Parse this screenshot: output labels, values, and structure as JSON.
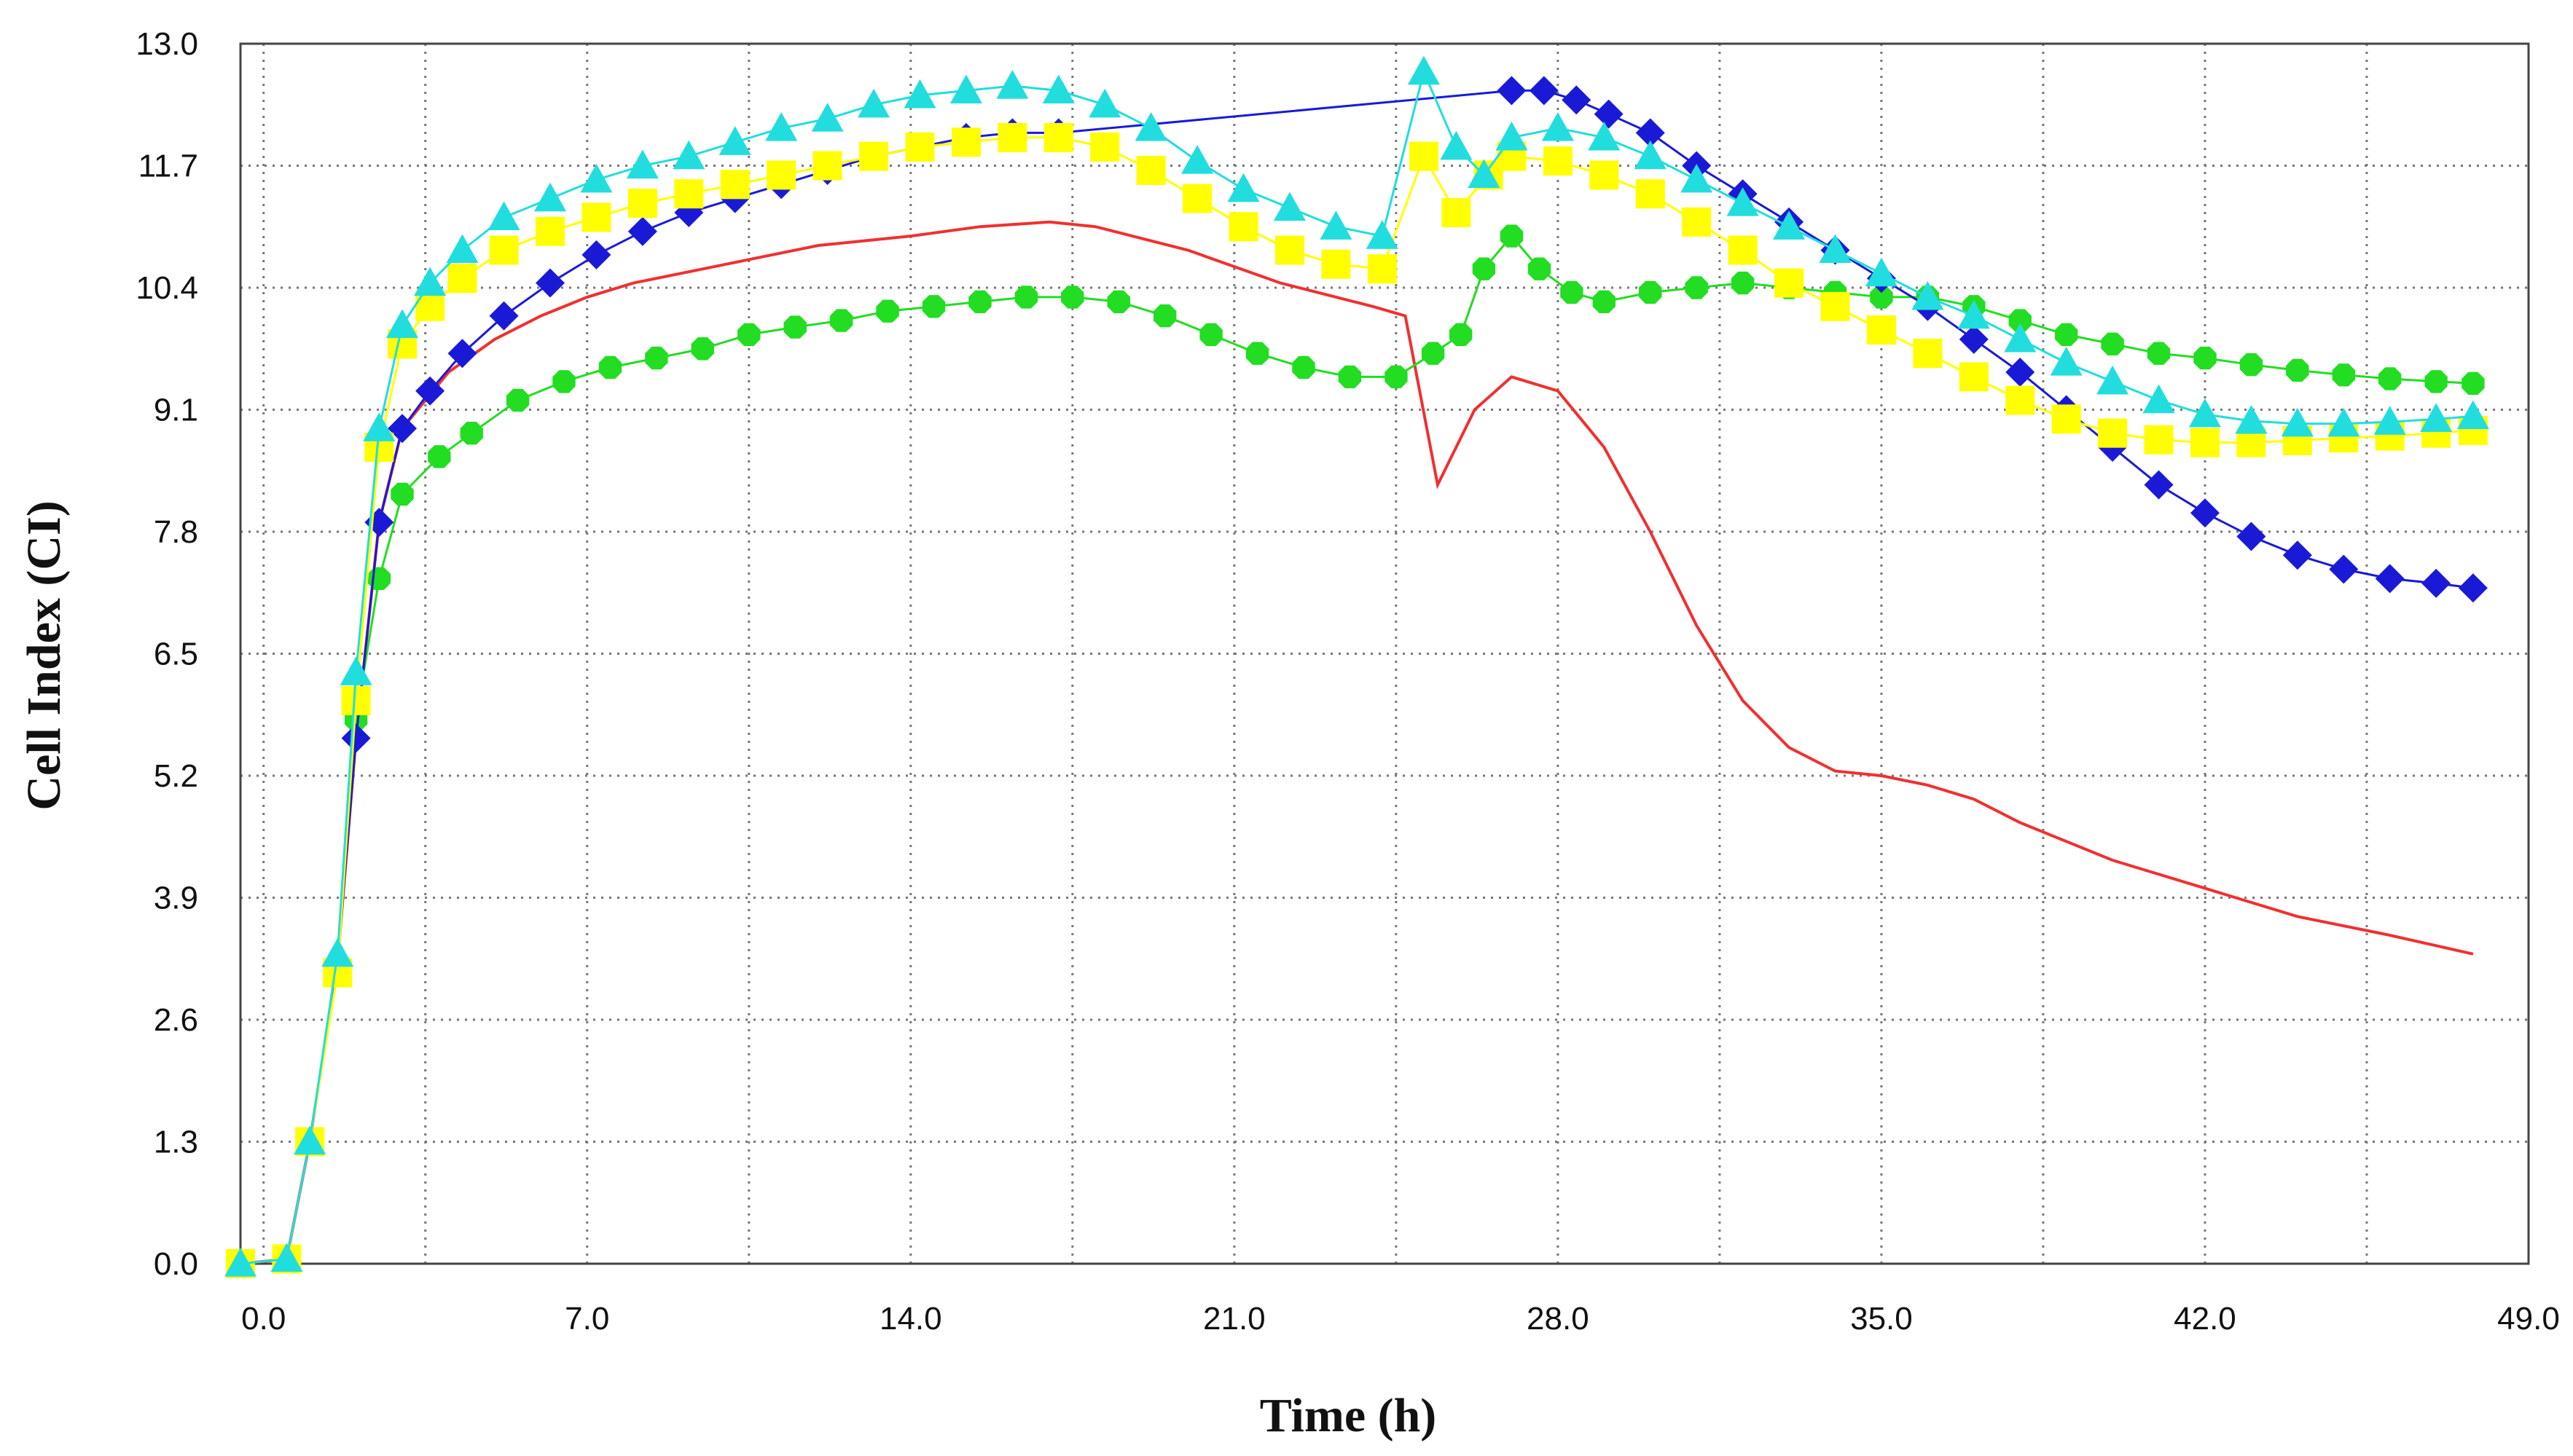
{
  "chart_data": {
    "type": "line",
    "title": "",
    "xlabel": "Time (h)",
    "ylabel": "Cell Index (CI)",
    "xlim": [
      -0.5,
      49.0
    ],
    "ylim": [
      0.0,
      13.0
    ],
    "grid": true,
    "legend": "none",
    "x_tick_labels": [
      "0.0",
      "7.0",
      "14.0",
      "21.0",
      "28.0",
      "35.0",
      "42.0",
      "49.0"
    ],
    "y_tick_labels": [
      "0.0",
      "1.3",
      "2.6",
      "3.9",
      "5.2",
      "6.5",
      "7.8",
      "9.1",
      "10.4",
      "11.7",
      "13.0"
    ],
    "colors": {
      "red": "#f03030",
      "green": "#22dd22",
      "blue": "#1a1ad6",
      "yellow": "#ffff00",
      "cyan": "#22dddd"
    },
    "series": [
      {
        "name": "red",
        "marker": "none",
        "color": "#f03030",
        "points": [
          [
            -0.5,
            0.0
          ],
          [
            0.5,
            0.05
          ],
          [
            1.0,
            1.3
          ],
          [
            1.6,
            3.2
          ],
          [
            2.0,
            5.6
          ],
          [
            2.5,
            7.9
          ],
          [
            3.0,
            8.9
          ],
          [
            4.0,
            9.5
          ],
          [
            5.0,
            9.85
          ],
          [
            6.0,
            10.1
          ],
          [
            7.0,
            10.3
          ],
          [
            8.0,
            10.45
          ],
          [
            10.0,
            10.65
          ],
          [
            12.0,
            10.85
          ],
          [
            14.0,
            10.95
          ],
          [
            15.5,
            11.05
          ],
          [
            17.0,
            11.1
          ],
          [
            18.0,
            11.05
          ],
          [
            20.0,
            10.8
          ],
          [
            22.0,
            10.45
          ],
          [
            24.0,
            10.2
          ],
          [
            24.7,
            10.1
          ],
          [
            25.4,
            8.3
          ],
          [
            26.2,
            9.1
          ],
          [
            27.0,
            9.45
          ],
          [
            28.0,
            9.3
          ],
          [
            29.0,
            8.7
          ],
          [
            30.0,
            7.8
          ],
          [
            31.0,
            6.8
          ],
          [
            32.0,
            6.0
          ],
          [
            33.0,
            5.5
          ],
          [
            34.0,
            5.25
          ],
          [
            35.0,
            5.2
          ],
          [
            36.0,
            5.1
          ],
          [
            37.0,
            4.95
          ],
          [
            38.0,
            4.7
          ],
          [
            40.0,
            4.3
          ],
          [
            42.0,
            4.0
          ],
          [
            44.0,
            3.7
          ],
          [
            46.0,
            3.5
          ],
          [
            47.8,
            3.3
          ]
        ]
      },
      {
        "name": "green",
        "marker": "hexagon",
        "color": "#22dd22",
        "points": [
          [
            -0.5,
            0.0
          ],
          [
            0.5,
            0.05
          ],
          [
            1.0,
            1.3
          ],
          [
            1.6,
            3.2
          ],
          [
            2.0,
            5.8
          ],
          [
            2.5,
            7.3
          ],
          [
            3.0,
            8.2
          ],
          [
            3.8,
            8.6
          ],
          [
            4.5,
            8.85
          ],
          [
            5.5,
            9.2
          ],
          [
            6.5,
            9.4
          ],
          [
            7.5,
            9.55
          ],
          [
            8.5,
            9.65
          ],
          [
            9.5,
            9.75
          ],
          [
            10.5,
            9.9
          ],
          [
            11.5,
            9.98
          ],
          [
            12.5,
            10.05
          ],
          [
            13.5,
            10.15
          ],
          [
            14.5,
            10.2
          ],
          [
            15.5,
            10.25
          ],
          [
            16.5,
            10.3
          ],
          [
            17.5,
            10.3
          ],
          [
            18.5,
            10.25
          ],
          [
            19.5,
            10.1
          ],
          [
            20.5,
            9.9
          ],
          [
            21.5,
            9.7
          ],
          [
            22.5,
            9.55
          ],
          [
            23.5,
            9.45
          ],
          [
            24.5,
            9.45
          ],
          [
            25.3,
            9.7
          ],
          [
            25.9,
            9.9
          ],
          [
            26.4,
            10.6
          ],
          [
            27.0,
            10.95
          ],
          [
            27.6,
            10.6
          ],
          [
            28.3,
            10.35
          ],
          [
            29.0,
            10.25
          ],
          [
            30.0,
            10.35
          ],
          [
            31.0,
            10.4
          ],
          [
            32.0,
            10.45
          ],
          [
            33.0,
            10.4
          ],
          [
            34.0,
            10.35
          ],
          [
            35.0,
            10.3
          ],
          [
            36.0,
            10.3
          ],
          [
            37.0,
            10.2
          ],
          [
            38.0,
            10.05
          ],
          [
            39.0,
            9.9
          ],
          [
            40.0,
            9.8
          ],
          [
            41.0,
            9.7
          ],
          [
            42.0,
            9.65
          ],
          [
            43.0,
            9.58
          ],
          [
            44.0,
            9.52
          ],
          [
            45.0,
            9.47
          ],
          [
            46.0,
            9.43
          ],
          [
            47.0,
            9.4
          ],
          [
            47.8,
            9.38
          ]
        ]
      },
      {
        "name": "blue",
        "marker": "diamond",
        "color": "#1a1ad6",
        "points": [
          [
            -0.5,
            0.0
          ],
          [
            0.5,
            0.05
          ],
          [
            1.0,
            1.3
          ],
          [
            1.6,
            3.2
          ],
          [
            2.0,
            5.6
          ],
          [
            2.5,
            7.9
          ],
          [
            3.0,
            8.9
          ],
          [
            3.6,
            9.3
          ],
          [
            4.3,
            9.7
          ],
          [
            5.2,
            10.1
          ],
          [
            6.2,
            10.45
          ],
          [
            7.2,
            10.75
          ],
          [
            8.2,
            11.0
          ],
          [
            9.2,
            11.2
          ],
          [
            10.2,
            11.35
          ],
          [
            11.2,
            11.5
          ],
          [
            12.2,
            11.65
          ],
          [
            13.2,
            11.8
          ],
          [
            14.2,
            11.9
          ],
          [
            15.2,
            12.0
          ],
          [
            16.2,
            12.05
          ],
          [
            17.2,
            12.05
          ],
          [
            27.0,
            12.5
          ],
          [
            27.7,
            12.5
          ],
          [
            28.4,
            12.4
          ],
          [
            29.1,
            12.25
          ],
          [
            30.0,
            12.05
          ],
          [
            31.0,
            11.7
          ],
          [
            32.0,
            11.4
          ],
          [
            33.0,
            11.1
          ],
          [
            34.0,
            10.8
          ],
          [
            35.0,
            10.5
          ],
          [
            36.0,
            10.2
          ],
          [
            37.0,
            9.85
          ],
          [
            38.0,
            9.5
          ],
          [
            39.0,
            9.1
          ],
          [
            40.0,
            8.7
          ],
          [
            41.0,
            8.3
          ],
          [
            42.0,
            8.0
          ],
          [
            43.0,
            7.75
          ],
          [
            44.0,
            7.55
          ],
          [
            45.0,
            7.4
          ],
          [
            46.0,
            7.3
          ],
          [
            47.0,
            7.25
          ],
          [
            47.8,
            7.2
          ]
        ]
      },
      {
        "name": "yellow",
        "marker": "square",
        "color": "#ffff00",
        "points": [
          [
            -0.5,
            0.0
          ],
          [
            0.5,
            0.05
          ],
          [
            1.0,
            1.3
          ],
          [
            1.6,
            3.1
          ],
          [
            2.0,
            6.0
          ],
          [
            2.5,
            8.7
          ],
          [
            3.0,
            9.8
          ],
          [
            3.6,
            10.2
          ],
          [
            4.3,
            10.5
          ],
          [
            5.2,
            10.8
          ],
          [
            6.2,
            11.0
          ],
          [
            7.2,
            11.15
          ],
          [
            8.2,
            11.3
          ],
          [
            9.2,
            11.4
          ],
          [
            10.2,
            11.5
          ],
          [
            11.2,
            11.6
          ],
          [
            12.2,
            11.7
          ],
          [
            13.2,
            11.8
          ],
          [
            14.2,
            11.9
          ],
          [
            15.2,
            11.95
          ],
          [
            16.2,
            12.0
          ],
          [
            17.2,
            12.0
          ],
          [
            18.2,
            11.9
          ],
          [
            19.2,
            11.65
          ],
          [
            20.2,
            11.35
          ],
          [
            21.2,
            11.05
          ],
          [
            22.2,
            10.8
          ],
          [
            23.2,
            10.65
          ],
          [
            24.2,
            10.6
          ],
          [
            25.1,
            11.8
          ],
          [
            25.8,
            11.2
          ],
          [
            26.5,
            11.6
          ],
          [
            27.0,
            11.8
          ],
          [
            28.0,
            11.75
          ],
          [
            29.0,
            11.6
          ],
          [
            30.0,
            11.4
          ],
          [
            31.0,
            11.1
          ],
          [
            32.0,
            10.8
          ],
          [
            33.0,
            10.45
          ],
          [
            34.0,
            10.2
          ],
          [
            35.0,
            9.95
          ],
          [
            36.0,
            9.7
          ],
          [
            37.0,
            9.45
          ],
          [
            38.0,
            9.2
          ],
          [
            39.0,
            9.0
          ],
          [
            40.0,
            8.85
          ],
          [
            41.0,
            8.78
          ],
          [
            42.0,
            8.75
          ],
          [
            43.0,
            8.75
          ],
          [
            44.0,
            8.77
          ],
          [
            45.0,
            8.8
          ],
          [
            46.0,
            8.82
          ],
          [
            47.0,
            8.85
          ],
          [
            47.8,
            8.88
          ]
        ]
      },
      {
        "name": "cyan",
        "marker": "triangle",
        "color": "#22dddd",
        "points": [
          [
            -0.5,
            0.0
          ],
          [
            0.5,
            0.05
          ],
          [
            1.0,
            1.3
          ],
          [
            1.6,
            3.3
          ],
          [
            2.0,
            6.3
          ],
          [
            2.5,
            8.9
          ],
          [
            3.0,
            10.0
          ],
          [
            3.6,
            10.45
          ],
          [
            4.3,
            10.8
          ],
          [
            5.2,
            11.15
          ],
          [
            6.2,
            11.35
          ],
          [
            7.2,
            11.55
          ],
          [
            8.2,
            11.7
          ],
          [
            9.2,
            11.8
          ],
          [
            10.2,
            11.95
          ],
          [
            11.2,
            12.1
          ],
          [
            12.2,
            12.2
          ],
          [
            13.2,
            12.35
          ],
          [
            14.2,
            12.45
          ],
          [
            15.2,
            12.5
          ],
          [
            16.2,
            12.55
          ],
          [
            17.2,
            12.5
          ],
          [
            18.2,
            12.35
          ],
          [
            19.2,
            12.1
          ],
          [
            20.2,
            11.75
          ],
          [
            21.2,
            11.45
          ],
          [
            22.2,
            11.25
          ],
          [
            23.2,
            11.05
          ],
          [
            24.2,
            10.95
          ],
          [
            25.1,
            12.7
          ],
          [
            25.8,
            11.9
          ],
          [
            26.4,
            11.6
          ],
          [
            27.0,
            12.0
          ],
          [
            28.0,
            12.1
          ],
          [
            29.0,
            12.0
          ],
          [
            30.0,
            11.8
          ],
          [
            31.0,
            11.55
          ],
          [
            32.0,
            11.3
          ],
          [
            33.0,
            11.05
          ],
          [
            34.0,
            10.8
          ],
          [
            35.0,
            10.55
          ],
          [
            36.0,
            10.3
          ],
          [
            37.0,
            10.1
          ],
          [
            38.0,
            9.85
          ],
          [
            39.0,
            9.6
          ],
          [
            40.0,
            9.4
          ],
          [
            41.0,
            9.2
          ],
          [
            42.0,
            9.05
          ],
          [
            43.0,
            8.98
          ],
          [
            44.0,
            8.95
          ],
          [
            45.0,
            8.95
          ],
          [
            46.0,
            8.97
          ],
          [
            47.0,
            9.0
          ],
          [
            47.8,
            9.03
          ]
        ]
      }
    ]
  }
}
